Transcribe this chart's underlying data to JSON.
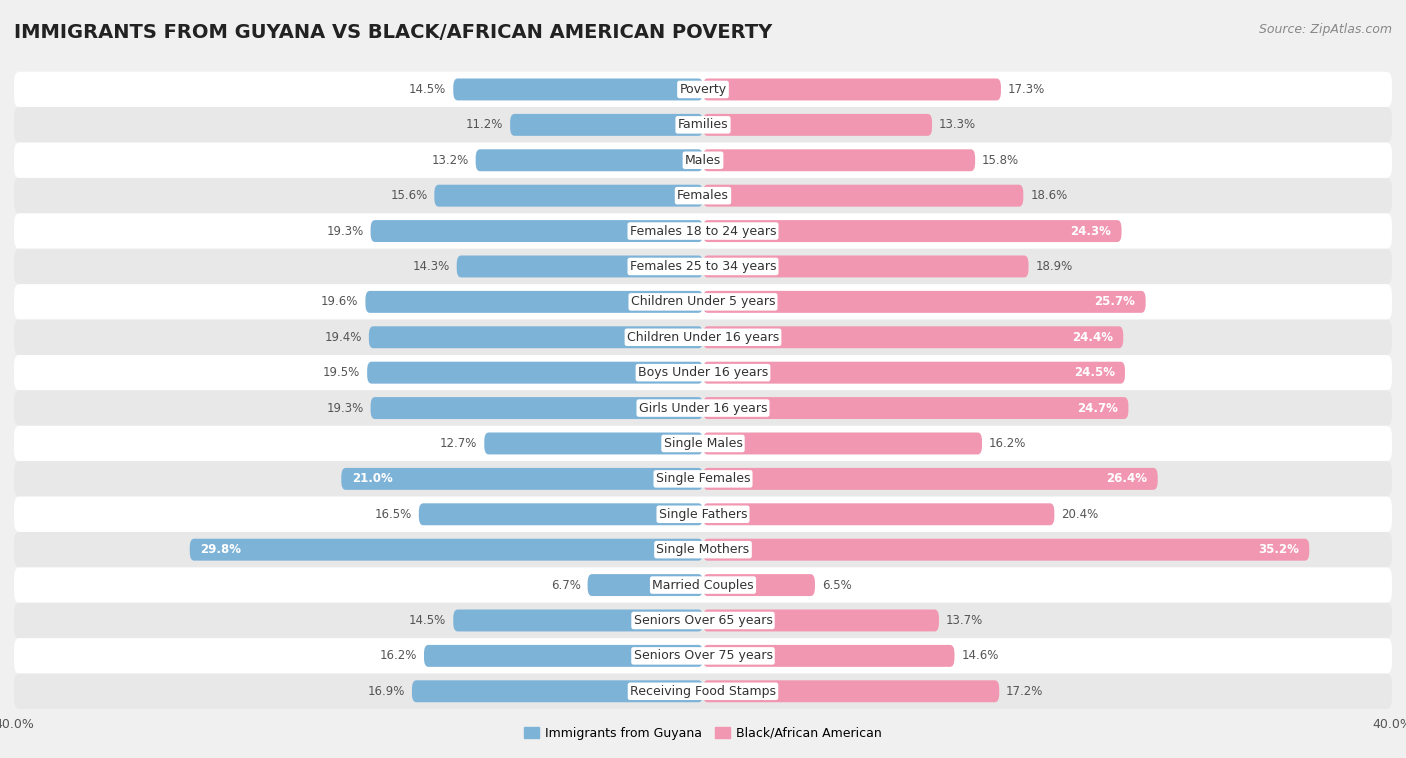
{
  "title": "IMMIGRANTS FROM GUYANA VS BLACK/AFRICAN AMERICAN POVERTY",
  "source": "Source: ZipAtlas.com",
  "categories": [
    "Poverty",
    "Families",
    "Males",
    "Females",
    "Females 18 to 24 years",
    "Females 25 to 34 years",
    "Children Under 5 years",
    "Children Under 16 years",
    "Boys Under 16 years",
    "Girls Under 16 years",
    "Single Males",
    "Single Females",
    "Single Fathers",
    "Single Mothers",
    "Married Couples",
    "Seniors Over 65 years",
    "Seniors Over 75 years",
    "Receiving Food Stamps"
  ],
  "guyana_values": [
    14.5,
    11.2,
    13.2,
    15.6,
    19.3,
    14.3,
    19.6,
    19.4,
    19.5,
    19.3,
    12.7,
    21.0,
    16.5,
    29.8,
    6.7,
    14.5,
    16.2,
    16.9
  ],
  "black_values": [
    17.3,
    13.3,
    15.8,
    18.6,
    24.3,
    18.9,
    25.7,
    24.4,
    24.5,
    24.7,
    16.2,
    26.4,
    20.4,
    35.2,
    6.5,
    13.7,
    14.6,
    17.2
  ],
  "guyana_color": "#7eb3d8",
  "black_color": "#f197b2",
  "guyana_label": "Immigrants from Guyana",
  "black_label": "Black/African American",
  "inside_label_color_guyana": "#ffffff",
  "inside_label_color_black": "#ffffff",
  "outside_label_color": "#555555",
  "xlim": 40.0,
  "background_color": "#f0f0f0",
  "row_even_color": "#ffffff",
  "row_odd_color": "#e8e8e8",
  "title_fontsize": 14,
  "source_fontsize": 9,
  "label_fontsize": 9,
  "value_fontsize": 8.5,
  "axis_fontsize": 9,
  "inside_threshold_guyana": 20,
  "inside_threshold_black": 22
}
